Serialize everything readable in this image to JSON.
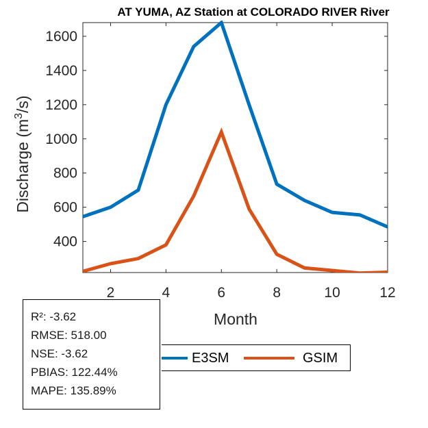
{
  "chart_data": {
    "type": "line",
    "title": "AT YUMA, AZ  Station at  COLORADO RIVER  River",
    "xlabel": "Month",
    "ylabel_main": "Discharge (m",
    "ylabel_sup": "3",
    "ylabel_end": "/s)",
    "xlim": [
      1,
      12
    ],
    "ylim": [
      218,
      1680
    ],
    "xticks": [
      2,
      4,
      6,
      8,
      10,
      12
    ],
    "yticks": [
      400,
      600,
      800,
      1000,
      1200,
      1400,
      1600
    ],
    "x": [
      1,
      2,
      3,
      4,
      5,
      6,
      7,
      8,
      9,
      10,
      11,
      12
    ],
    "series": [
      {
        "name": "E3SM",
        "color": "#0072BD",
        "values": [
          545,
          600,
          700,
          1200,
          1540,
          1680,
          1200,
          735,
          640,
          570,
          555,
          485
        ]
      },
      {
        "name": "GSIM",
        "color": "#D95319",
        "values": [
          225,
          270,
          300,
          380,
          665,
          1040,
          590,
          325,
          245,
          230,
          215,
          220
        ]
      }
    ]
  },
  "stats": {
    "r2": "R²: -3.62",
    "rmse": "RMSE: 518.00",
    "nse": "NSE: -3.62",
    "pbias": "PBIAS: 122.44%",
    "mape": "MAPE: 135.89%"
  },
  "legend": {
    "e3sm": "E3SM",
    "gsim": "GSIM"
  }
}
